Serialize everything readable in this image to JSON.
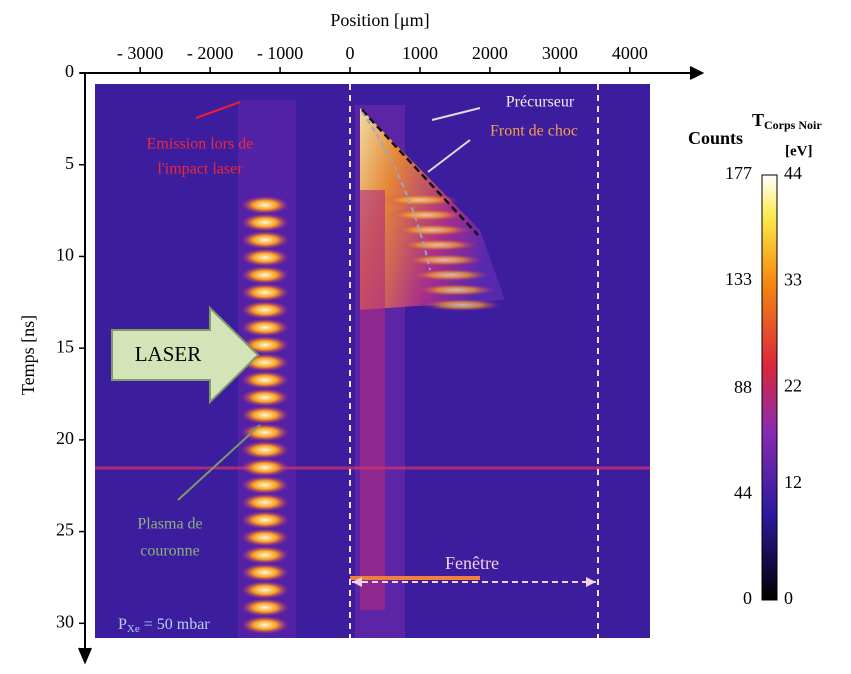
{
  "chart_data": {
    "type": "image",
    "x_label": "Position [μm]",
    "y_label": "Temps [ns]",
    "xlim": [
      -3860,
      4860
    ],
    "xticks": [
      {
        "value": -3000,
        "label": "- 3000"
      },
      {
        "value": -2000,
        "label": "- 2000"
      },
      {
        "value": -1000,
        "label": "- 1000"
      },
      0,
      1000,
      2000,
      3000,
      4000
    ],
    "ylim": [
      0,
      32
    ],
    "yticks": [
      0,
      5,
      10,
      15,
      20,
      25,
      30
    ],
    "colorbar": {
      "title": "Counts",
      "y2_title": "T",
      "y2_title_sub": "Corps Noir",
      "y2_unit": "[eV]",
      "ylim": [
        0,
        177
      ],
      "yticks": [
        0,
        44,
        88,
        133,
        177
      ],
      "y2lim": [
        0,
        44
      ],
      "y2ticks": [
        0,
        12,
        22,
        33,
        44
      ]
    },
    "annotations": {
      "precursor": "Précurseur",
      "shock": "Front de choc",
      "emission_1": "Emission lors de",
      "emission_2": "l'impact laser",
      "laser": "LASER",
      "plasma_1": "Plasma de",
      "plasma_2": "couronne",
      "window": "Fenêtre",
      "pressure_p": "P",
      "pressure_sub": "Xe",
      "pressure_rest": " = 50 mbar"
    }
  }
}
